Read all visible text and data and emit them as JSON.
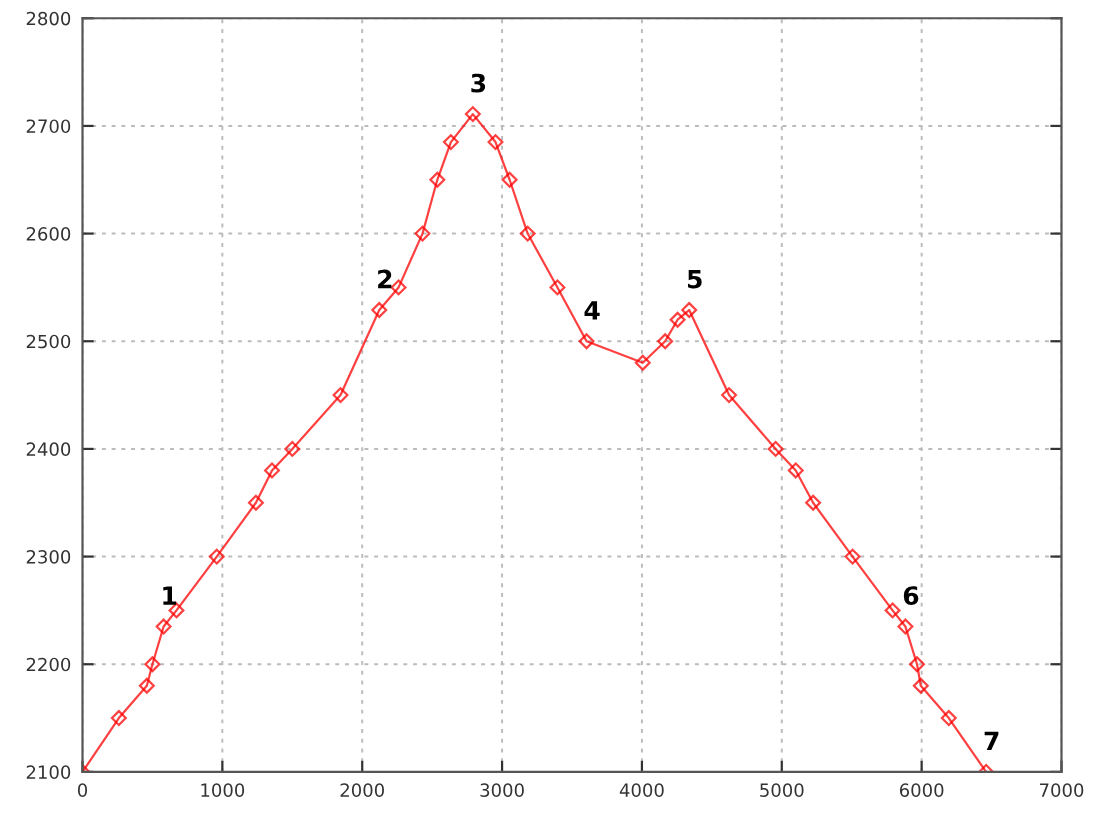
{
  "chart_data": {
    "type": "line",
    "x": [
      0,
      260,
      460,
      500,
      580,
      672,
      960,
      1240,
      1355,
      1500,
      1845,
      2122,
      2260,
      2431,
      2537,
      2634,
      2791,
      2953,
      3054,
      3183,
      3396,
      3604,
      4006,
      4166,
      4255,
      4338,
      4623,
      4956,
      5100,
      5224,
      5506,
      5792,
      5884,
      5967,
      5994,
      6194,
      6461
    ],
    "series": [
      {
        "color": "#ff0000",
        "values": [
          2100,
          2150,
          2180,
          2200,
          2235,
          2250,
          2300,
          2350,
          2380,
          2400,
          2450,
          2529,
          2550,
          2600,
          2650,
          2685,
          2711,
          2685,
          2650,
          2600,
          2550,
          2500,
          2480,
          2500,
          2520,
          2529,
          2450,
          2400,
          2380,
          2350,
          2300,
          2250,
          2235,
          2200,
          2180,
          2150,
          2100
        ]
      }
    ],
    "marker": "diamond",
    "line_style": "solid",
    "grid": true,
    "legend": false,
    "xlim": [
      0,
      7000
    ],
    "xticks": [
      0,
      1000,
      2000,
      3000,
      4000,
      5000,
      6000,
      7000
    ],
    "ylim": [
      2100,
      2800
    ],
    "yticks": [
      2100,
      2200,
      2300,
      2400,
      2500,
      2600,
      2700,
      2800
    ],
    "annotations": [
      {
        "text": "1",
        "x": 580,
        "y": 2235
      },
      {
        "text": "2",
        "x": 2122,
        "y": 2529
      },
      {
        "text": "3",
        "x": 2791,
        "y": 2711
      },
      {
        "text": "4",
        "x": 3604,
        "y": 2500
      },
      {
        "text": "5",
        "x": 4338,
        "y": 2529
      },
      {
        "text": "6",
        "x": 5884,
        "y": 2235
      },
      {
        "text": "7",
        "x": 6461,
        "y": 2100
      }
    ]
  }
}
